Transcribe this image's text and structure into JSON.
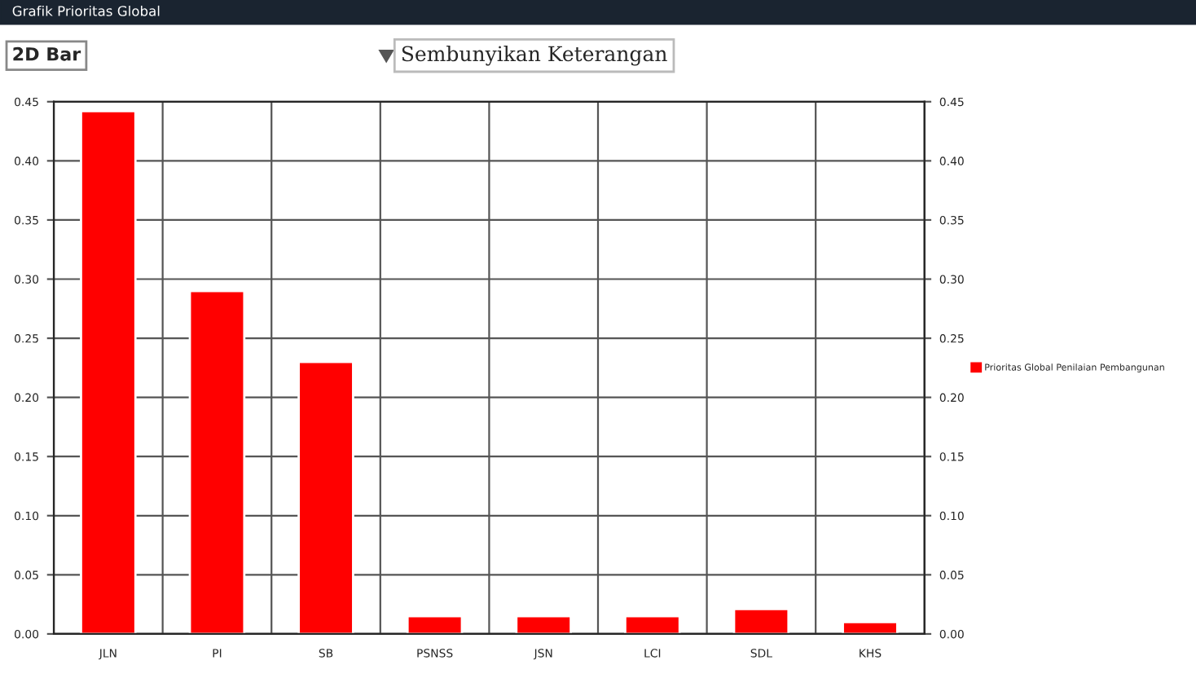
{
  "chart_data": {
    "type": "bar",
    "title": "Grafik Prioritas Global",
    "categories": [
      "JLN",
      "PI",
      "SB",
      "PSNSS",
      "JSN",
      "LCI",
      "SDL",
      "KHS"
    ],
    "series": [
      {
        "name": "Prioritas Global Penilaian Pembangunan",
        "color": "#ff0000",
        "values": [
          0.442,
          0.29,
          0.23,
          0.015,
          0.015,
          0.015,
          0.021,
          0.01
        ]
      }
    ],
    "ylim": [
      0,
      0.45
    ],
    "yticks": [
      {
        "value": 0,
        "label": "0.00"
      },
      {
        "value": 0.05,
        "label": "0.05"
      },
      {
        "value": 0.1,
        "label": "0.10"
      },
      {
        "value": 0.15,
        "label": "0.15"
      },
      {
        "value": 0.2,
        "label": "0.20"
      },
      {
        "value": 0.25,
        "label": "0.25"
      },
      {
        "value": 0.3,
        "label": "0.30"
      },
      {
        "value": 0.35,
        "label": "0.35"
      },
      {
        "value": 0.4,
        "label": "0.40"
      },
      {
        "value": 0.45,
        "label": "0.45"
      }
    ],
    "y2lim": [
      0,
      0.45
    ],
    "y2ticks": [
      {
        "value": 0,
        "label": "0.00"
      },
      {
        "value": 0.05,
        "label": "0.05"
      },
      {
        "value": 0.1,
        "label": "0.10"
      },
      {
        "value": 0.15,
        "label": "0.15"
      },
      {
        "value": 0.2,
        "label": "0.20"
      },
      {
        "value": 0.25,
        "label": "0.25"
      },
      {
        "value": 0.3,
        "label": "0.30"
      },
      {
        "value": 0.35,
        "label": "0.35"
      },
      {
        "value": 0.4,
        "label": "0.40"
      },
      {
        "value": 0.45,
        "label": "0.45"
      }
    ],
    "annotations": [
      "2D Bar",
      "Sembunyikan Keterangan"
    ],
    "grid": true,
    "legend": "right"
  }
}
